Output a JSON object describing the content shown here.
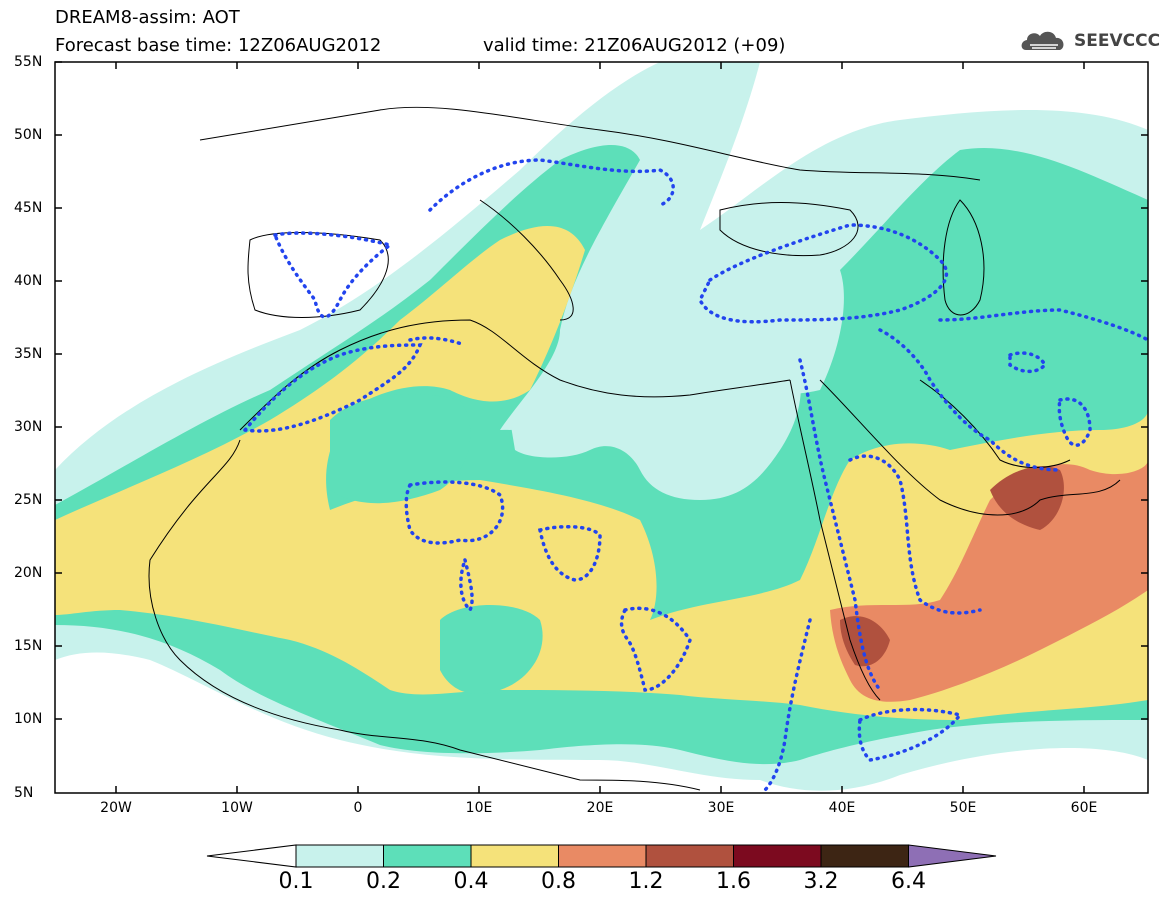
{
  "header": {
    "title": "DREAM8-assim: AOT",
    "base_time": "Forecast base time: 12Z06AUG2012",
    "valid_time": "valid time: 21Z06AUG2012 (+09)"
  },
  "logo": {
    "text": "SEEVCCC",
    "icon": "cloud-icon"
  },
  "map": {
    "lat_labels": [
      "55N",
      "50N",
      "45N",
      "40N",
      "35N",
      "30N",
      "25N",
      "20N",
      "15N",
      "10N",
      "5N"
    ],
    "lon_labels": [
      "20W",
      "10W",
      "0",
      "10E",
      "20E",
      "30E",
      "40E",
      "50E",
      "60E"
    ],
    "field": "AOT"
  },
  "legend": {
    "labels": [
      "0.1",
      "0.2",
      "0.4",
      "0.8",
      "1.2",
      "1.6",
      "3.2",
      "6.4"
    ],
    "colors": [
      "#c8f2ec",
      "#5ddfb9",
      "#f5e27a",
      "#e98a64",
      "#b0513e",
      "#7c0a1f",
      "#3d2514",
      "#8e6fb5"
    ]
  }
}
